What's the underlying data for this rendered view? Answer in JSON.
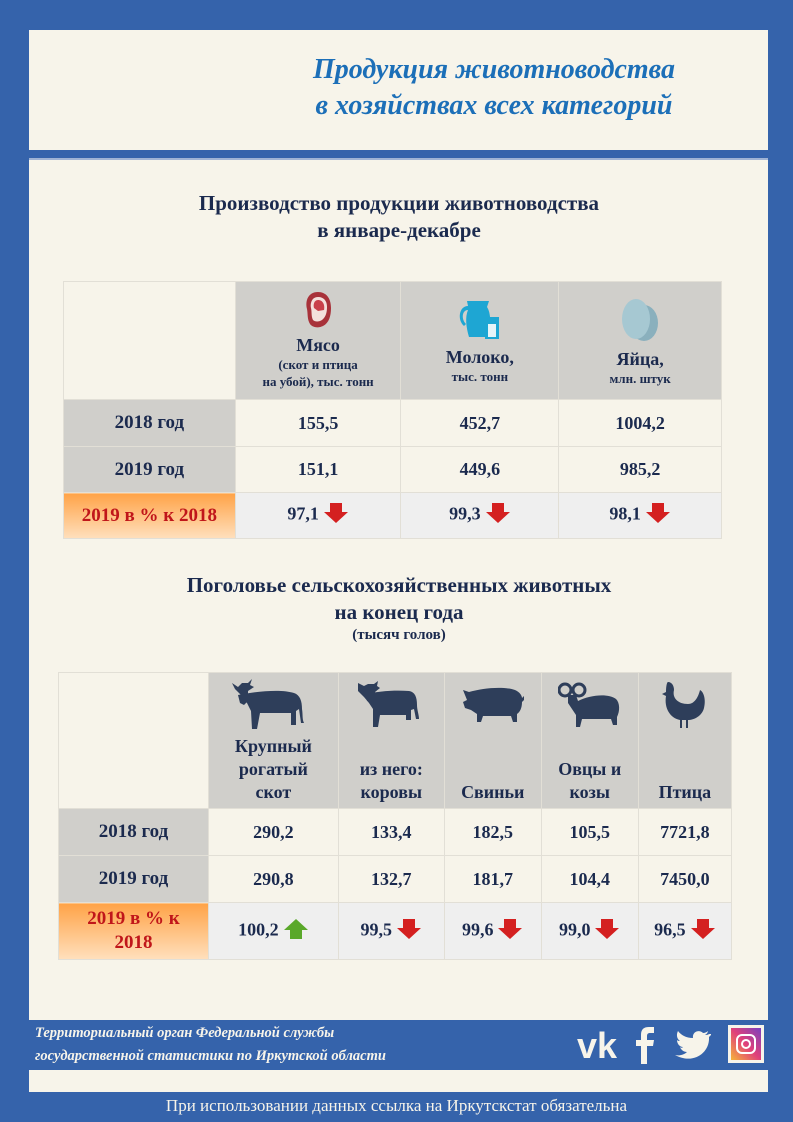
{
  "header": {
    "title_line1": "Продукция животноводства",
    "title_line2": "в хозяйствах всех категорий"
  },
  "production": {
    "title_line1": "Производство продукции животноводства",
    "title_line2": "в январе-декабре",
    "columns": [
      {
        "icon": "meat-icon",
        "label": "Мясо",
        "sub1": "(скот и птица",
        "sub2": "на  убой), тыс. тонн"
      },
      {
        "icon": "milk-icon",
        "label": "Молоко,",
        "sub1": "",
        "sub2": "тыс. тонн"
      },
      {
        "icon": "eggs-icon",
        "label": "Яйца,",
        "sub1": "",
        "sub2": "млн. штук"
      }
    ],
    "rows": [
      {
        "label": "2018 год",
        "values": [
          "155,5",
          "452,7",
          "1004,2"
        ]
      },
      {
        "label": "2019 год",
        "values": [
          "151,1",
          "449,6",
          "985,2"
        ]
      }
    ],
    "percent_row": {
      "label": "2019 в % к 2018",
      "values": [
        "97,1",
        "99,3",
        "98,1"
      ],
      "trends": [
        "down",
        "down",
        "down"
      ]
    }
  },
  "livestock": {
    "title_line1": "Поголовье сельскохозяйственных животных",
    "title_line2": "на конец года",
    "subtitle": "(тысяч голов)",
    "columns": [
      {
        "icon": "bull-icon",
        "l1": "Крупный",
        "l2": "рогатый",
        "l3": "скот"
      },
      {
        "icon": "cow-icon",
        "l1": "",
        "l2": "из него:",
        "l3": "коровы"
      },
      {
        "icon": "pig-icon",
        "l1": "",
        "l2": "",
        "l3": "Свиньи"
      },
      {
        "icon": "ram-icon",
        "l1": "",
        "l2": "Овцы и",
        "l3": "козы"
      },
      {
        "icon": "hen-icon",
        "l1": "",
        "l2": "",
        "l3": "Птица"
      }
    ],
    "rows": [
      {
        "label": "2018 год",
        "values": [
          "290,2",
          "133,4",
          "182,5",
          "105,5",
          "7721,8"
        ]
      },
      {
        "label": "2019 год",
        "values": [
          "290,8",
          "132,7",
          "181,7",
          "104,4",
          "7450,0"
        ]
      }
    ],
    "percent_row": {
      "label_line1": "2019 в % к",
      "label_line2": "2018",
      "values": [
        "100,2",
        "99,5",
        "99,6",
        "99,0",
        "96,5"
      ],
      "trends": [
        "up",
        "down",
        "down",
        "down",
        "down"
      ]
    }
  },
  "footer": {
    "org_line1": "Территориальный орган Федеральной службы",
    "org_line2": "государственной статистики по Иркутской области",
    "note": "При использовании данных ссылка на Иркутскстат обязательна"
  },
  "colors": {
    "blue": "#3563ab",
    "cream": "#f7f4ea",
    "title": "#1c6fb8",
    "down": "#d42020",
    "up": "#5aa82a"
  }
}
